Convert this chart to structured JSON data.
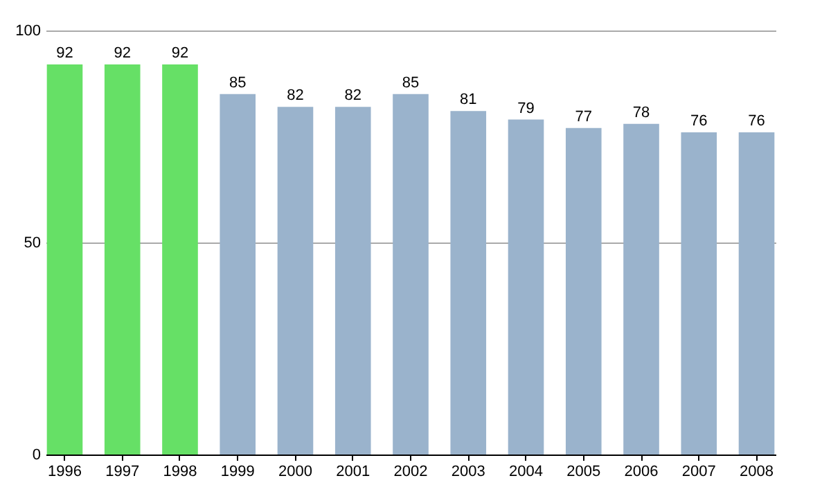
{
  "chart_data": {
    "type": "bar",
    "categories": [
      "1996",
      "1997",
      "1998",
      "1999",
      "2000",
      "2001",
      "2002",
      "2003",
      "2004",
      "2005",
      "2006",
      "2007",
      "2008"
    ],
    "values": [
      92,
      92,
      92,
      85,
      82,
      82,
      85,
      81,
      79,
      77,
      78,
      76,
      76
    ],
    "colors": [
      "#66e066",
      "#66e066",
      "#66e066",
      "#9ab3cc",
      "#9ab3cc",
      "#9ab3cc",
      "#9ab3cc",
      "#9ab3cc",
      "#9ab3cc",
      "#9ab3cc",
      "#9ab3cc",
      "#9ab3cc",
      "#9ab3cc"
    ],
    "ylim": [
      0,
      100
    ],
    "yticks": [
      0,
      50,
      100
    ],
    "grid": "y",
    "data_labels": true
  }
}
